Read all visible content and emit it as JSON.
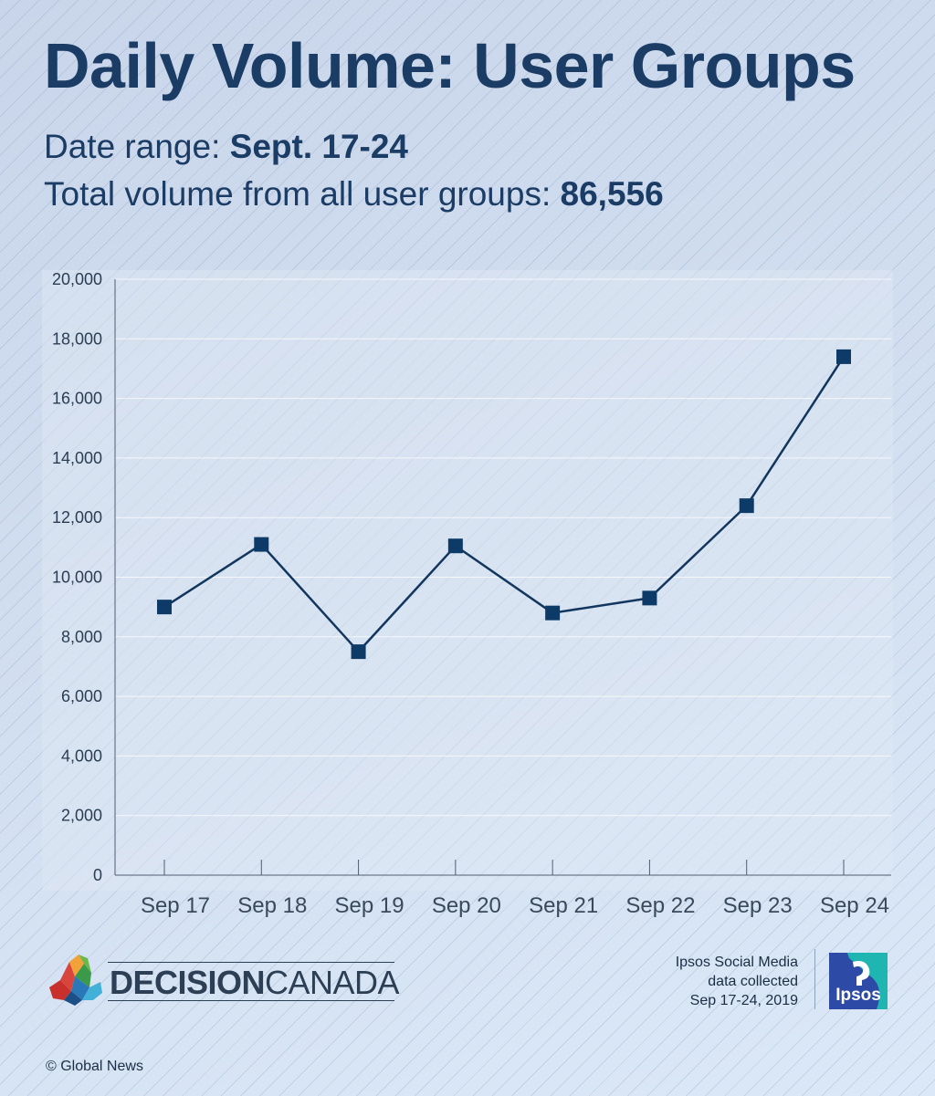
{
  "header": {
    "title": "Daily Volume: User Groups",
    "date_range_label": "Date range: ",
    "date_range_value": "Sept. 17-24",
    "total_label": "Total volume from all user groups: ",
    "total_value": "86,556"
  },
  "chart_data": {
    "type": "line",
    "categories": [
      "Sep 17",
      "Sep 18",
      "Sep 19",
      "Sep 20",
      "Sep 21",
      "Sep 22",
      "Sep 23",
      "Sep 24"
    ],
    "series": [
      {
        "values": [
          9000,
          11100,
          7500,
          11050,
          8800,
          9300,
          12400,
          17400
        ]
      }
    ],
    "y_ticks": [
      "20,000",
      "18,000",
      "16,000",
      "14,000",
      "12,000",
      "10,000",
      "8,000",
      "6,000",
      "4,000",
      "2,000",
      "0"
    ],
    "ylim": [
      0,
      20000
    ],
    "marker": "square",
    "grid": true,
    "line_color": "#12365e",
    "marker_color": "#0d3a66"
  },
  "footer": {
    "decision": "DECISION",
    "canada": "CANADA",
    "source_line1": "Ipsos Social Media",
    "source_line2": "data collected",
    "source_line3": "Sep 17-24, 2019",
    "ipsos_logo_text": "Ipsos",
    "copyright": "© Global News"
  },
  "colors": {
    "title": "#1b3c64",
    "ipsos_blue": "#2c4aa6",
    "ipsos_teal": "#1fb6b1"
  }
}
